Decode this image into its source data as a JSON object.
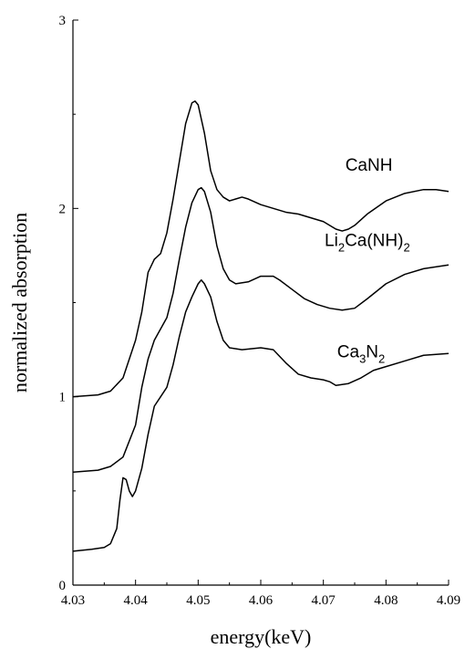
{
  "chart_data": {
    "type": "line",
    "title": "",
    "xlabel": "energy(keV)",
    "ylabel": "normalized absorption",
    "xlim": [
      4.03,
      4.09
    ],
    "ylim": [
      0,
      3
    ],
    "x_ticks": [
      4.03,
      4.04,
      4.05,
      4.06,
      4.07,
      4.08,
      4.09
    ],
    "y_ticks": [
      0,
      1,
      2,
      3
    ],
    "x_tick_labels": [
      "4.03",
      "4.04",
      "4.05",
      "4.06",
      "4.07",
      "4.08",
      "4.09"
    ],
    "y_tick_labels": [
      "0",
      "1",
      "2",
      "3"
    ],
    "grid": false,
    "series": [
      {
        "name": "CaNH",
        "label_parts": [
          {
            "t": "CaNH",
            "sub": false
          }
        ],
        "label_at": [
          4.0735,
          2.2
        ],
        "points": [
          [
            4.03,
            1.0
          ],
          [
            4.034,
            1.01
          ],
          [
            4.036,
            1.03
          ],
          [
            4.038,
            1.1
          ],
          [
            4.04,
            1.3
          ],
          [
            4.041,
            1.45
          ],
          [
            4.042,
            1.66
          ],
          [
            4.043,
            1.73
          ],
          [
            4.044,
            1.76
          ],
          [
            4.045,
            1.87
          ],
          [
            4.046,
            2.05
          ],
          [
            4.047,
            2.25
          ],
          [
            4.048,
            2.45
          ],
          [
            4.049,
            2.56
          ],
          [
            4.0495,
            2.57
          ],
          [
            4.05,
            2.55
          ],
          [
            4.051,
            2.4
          ],
          [
            4.052,
            2.2
          ],
          [
            4.053,
            2.1
          ],
          [
            4.054,
            2.06
          ],
          [
            4.055,
            2.04
          ],
          [
            4.056,
            2.05
          ],
          [
            4.057,
            2.06
          ],
          [
            4.058,
            2.05
          ],
          [
            4.06,
            2.02
          ],
          [
            4.062,
            2.0
          ],
          [
            4.064,
            1.98
          ],
          [
            4.066,
            1.97
          ],
          [
            4.068,
            1.95
          ],
          [
            4.07,
            1.93
          ],
          [
            4.071,
            1.91
          ],
          [
            4.072,
            1.89
          ],
          [
            4.073,
            1.88
          ],
          [
            4.074,
            1.89
          ],
          [
            4.075,
            1.91
          ],
          [
            4.077,
            1.97
          ],
          [
            4.08,
            2.04
          ],
          [
            4.083,
            2.08
          ],
          [
            4.086,
            2.1
          ],
          [
            4.088,
            2.1
          ],
          [
            4.09,
            2.09
          ]
        ]
      },
      {
        "name": "Li2Ca(NH)2",
        "label_parts": [
          {
            "t": "Li",
            "sub": false
          },
          {
            "t": "2",
            "sub": true
          },
          {
            "t": "Ca(NH)",
            "sub": false
          },
          {
            "t": "2",
            "sub": true
          }
        ],
        "label_at": [
          4.0702,
          1.8
        ],
        "points": [
          [
            4.03,
            0.6
          ],
          [
            4.034,
            0.61
          ],
          [
            4.036,
            0.63
          ],
          [
            4.038,
            0.68
          ],
          [
            4.04,
            0.85
          ],
          [
            4.041,
            1.05
          ],
          [
            4.042,
            1.2
          ],
          [
            4.043,
            1.3
          ],
          [
            4.044,
            1.36
          ],
          [
            4.045,
            1.42
          ],
          [
            4.046,
            1.55
          ],
          [
            4.047,
            1.73
          ],
          [
            4.048,
            1.9
          ],
          [
            4.049,
            2.03
          ],
          [
            4.05,
            2.1
          ],
          [
            4.0505,
            2.11
          ],
          [
            4.051,
            2.09
          ],
          [
            4.052,
            1.98
          ],
          [
            4.053,
            1.8
          ],
          [
            4.054,
            1.68
          ],
          [
            4.055,
            1.62
          ],
          [
            4.056,
            1.6
          ],
          [
            4.058,
            1.61
          ],
          [
            4.06,
            1.64
          ],
          [
            4.062,
            1.64
          ],
          [
            4.063,
            1.62
          ],
          [
            4.065,
            1.57
          ],
          [
            4.067,
            1.52
          ],
          [
            4.069,
            1.49
          ],
          [
            4.071,
            1.47
          ],
          [
            4.073,
            1.46
          ],
          [
            4.075,
            1.47
          ],
          [
            4.077,
            1.52
          ],
          [
            4.08,
            1.6
          ],
          [
            4.083,
            1.65
          ],
          [
            4.086,
            1.68
          ],
          [
            4.09,
            1.7
          ]
        ]
      },
      {
        "name": "Ca3N2",
        "label_parts": [
          {
            "t": "Ca",
            "sub": false
          },
          {
            "t": "3",
            "sub": true
          },
          {
            "t": "N",
            "sub": false
          },
          {
            "t": "2",
            "sub": true
          }
        ],
        "label_at": [
          4.0722,
          1.21
        ],
        "points": [
          [
            4.03,
            0.18
          ],
          [
            4.033,
            0.19
          ],
          [
            4.035,
            0.2
          ],
          [
            4.036,
            0.22
          ],
          [
            4.037,
            0.3
          ],
          [
            4.0375,
            0.45
          ],
          [
            4.038,
            0.57
          ],
          [
            4.0385,
            0.56
          ],
          [
            4.039,
            0.5
          ],
          [
            4.0395,
            0.47
          ],
          [
            4.04,
            0.5
          ],
          [
            4.041,
            0.62
          ],
          [
            4.042,
            0.8
          ],
          [
            4.043,
            0.95
          ],
          [
            4.044,
            1.0
          ],
          [
            4.045,
            1.05
          ],
          [
            4.046,
            1.17
          ],
          [
            4.047,
            1.32
          ],
          [
            4.048,
            1.45
          ],
          [
            4.049,
            1.53
          ],
          [
            4.05,
            1.6
          ],
          [
            4.0505,
            1.62
          ],
          [
            4.051,
            1.6
          ],
          [
            4.052,
            1.53
          ],
          [
            4.053,
            1.4
          ],
          [
            4.054,
            1.3
          ],
          [
            4.055,
            1.26
          ],
          [
            4.057,
            1.25
          ],
          [
            4.06,
            1.26
          ],
          [
            4.062,
            1.25
          ],
          [
            4.064,
            1.18
          ],
          [
            4.066,
            1.12
          ],
          [
            4.068,
            1.1
          ],
          [
            4.07,
            1.09
          ],
          [
            4.071,
            1.08
          ],
          [
            4.072,
            1.06
          ],
          [
            4.074,
            1.07
          ],
          [
            4.076,
            1.1
          ],
          [
            4.078,
            1.14
          ],
          [
            4.08,
            1.16
          ],
          [
            4.083,
            1.19
          ],
          [
            4.086,
            1.22
          ],
          [
            4.09,
            1.23
          ]
        ]
      }
    ]
  }
}
